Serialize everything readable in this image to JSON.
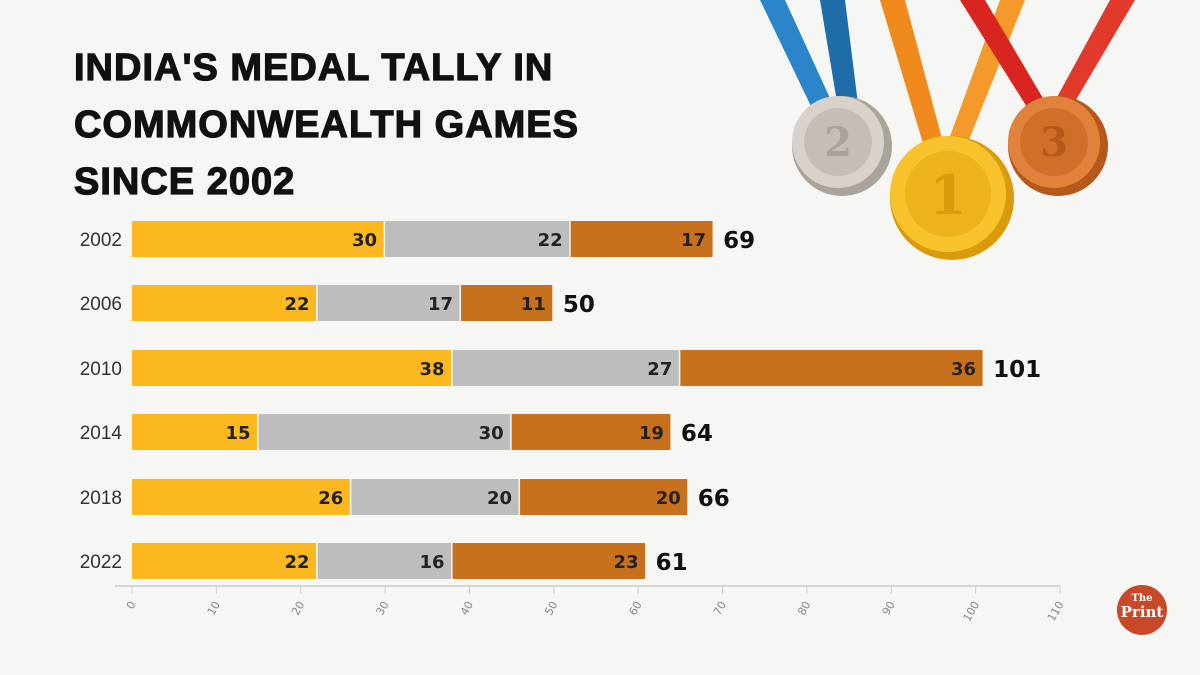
{
  "title_lines": [
    "INDIA'S MEDAL TALLY IN",
    "COMMONWEALTH GAMES",
    "SINCE 2002"
  ],
  "logo": {
    "line1": "The",
    "line2": "Print"
  },
  "colors": {
    "gold": "#FBB81F",
    "silver": "#BDBDBD",
    "bronze": "#C7711D",
    "background": "#f6f6f4"
  },
  "chart_data": {
    "type": "bar",
    "orientation": "horizontal",
    "stacked": true,
    "title": "INDIA'S MEDAL TALLY IN COMMONWEALTH GAMES SINCE 2002",
    "categories": [
      "2002",
      "2006",
      "2010",
      "2014",
      "2018",
      "2022"
    ],
    "series": [
      {
        "name": "Gold",
        "values": [
          30,
          22,
          38,
          15,
          26,
          22
        ]
      },
      {
        "name": "Silver",
        "values": [
          22,
          17,
          27,
          30,
          20,
          16
        ]
      },
      {
        "name": "Bronze",
        "values": [
          17,
          11,
          36,
          19,
          20,
          23
        ]
      }
    ],
    "totals": [
      69,
      50,
      101,
      64,
      66,
      61
    ],
    "xlim": [
      0,
      110
    ],
    "xticks": [
      0,
      10,
      20,
      30,
      40,
      50,
      60,
      70,
      80,
      90,
      100,
      110
    ],
    "xlabel": "",
    "ylabel": "",
    "grid": false
  }
}
